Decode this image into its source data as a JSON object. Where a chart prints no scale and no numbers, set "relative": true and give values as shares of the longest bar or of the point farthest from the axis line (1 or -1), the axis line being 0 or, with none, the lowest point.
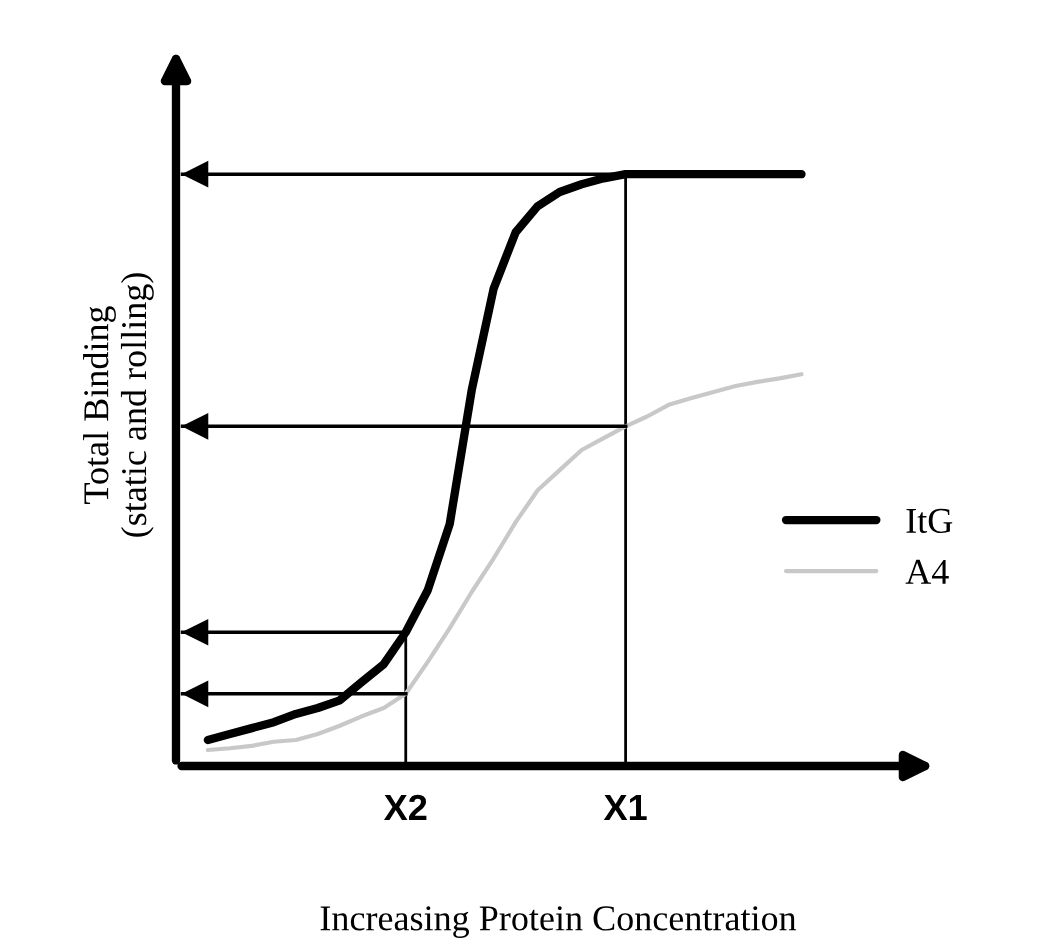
{
  "chart_data": {
    "type": "line",
    "relative": true,
    "xlabel": "Increasing Protein Concentration",
    "ylabel": "Total Binding\n(static and rolling)",
    "categories": [
      null,
      null,
      null,
      null,
      null,
      null,
      null,
      null,
      null,
      null,
      "X2",
      null,
      null,
      null,
      null,
      null,
      null,
      null,
      null,
      null,
      "X1",
      null,
      null,
      null,
      null,
      null,
      null,
      null,
      null,
      null
    ],
    "series": [
      {
        "name": "ItG",
        "color": "#000000",
        "values": [
          null,
          0.044,
          0.054,
          0.064,
          0.074,
          0.088,
          0.098,
          0.111,
          0.142,
          0.172,
          0.226,
          0.297,
          0.409,
          0.635,
          0.807,
          0.902,
          0.946,
          0.97,
          0.983,
          0.993,
          1,
          1,
          1,
          1,
          1,
          1,
          1,
          1,
          1,
          null
        ]
      },
      {
        "name": "A4",
        "color": "#c8c8c8",
        "values": [
          null,
          0.027,
          0.03,
          0.034,
          0.041,
          0.044,
          0.054,
          0.068,
          0.084,
          0.098,
          0.122,
          0.176,
          0.233,
          0.294,
          0.351,
          0.412,
          0.466,
          0.5,
          0.534,
          0.554,
          0.574,
          0.591,
          0.611,
          0.622,
          0.632,
          0.642,
          0.649,
          0.655,
          0.662,
          null
        ]
      }
    ],
    "ref_lines": [
      {
        "axis": "x",
        "value": "X2"
      },
      {
        "axis": "x",
        "value": "X1"
      },
      {
        "axis": "y",
        "value": 1
      },
      {
        "axis": "y",
        "value": 0.574
      },
      {
        "axis": "y",
        "value": 0.226
      },
      {
        "axis": "y",
        "value": 0.122
      }
    ],
    "legend": "right",
    "grid": false,
    "marker": "none",
    "line_style": "solid"
  }
}
